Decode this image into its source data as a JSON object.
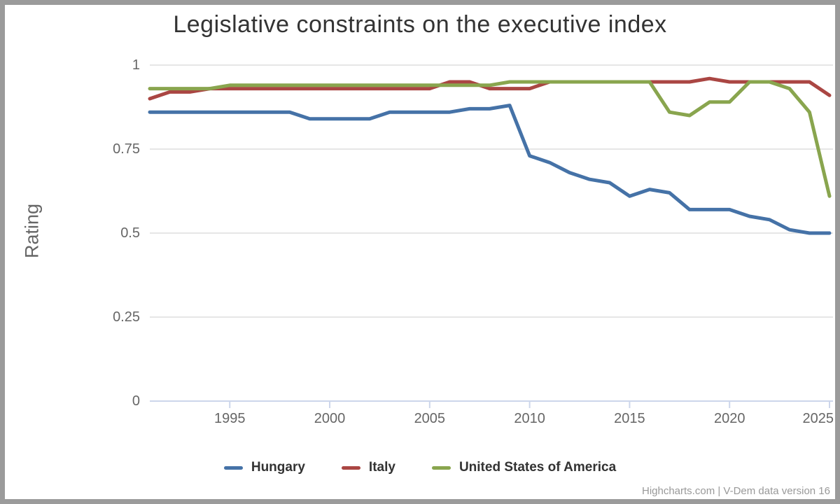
{
  "title": "Legislative constraints on the executive index",
  "y_axis": {
    "title": "Rating",
    "ticks": [
      0,
      0.25,
      0.5,
      0.75,
      1
    ]
  },
  "x_axis": {
    "ticks": [
      1995,
      2000,
      2005,
      2010,
      2015,
      2020,
      2025
    ]
  },
  "credits": "Highcharts.com | V-Dem data version 16",
  "colors": {
    "grid": "#e6e6e6",
    "axis_line": "#ccd6eb",
    "text": "#666666",
    "title_text": "#333333"
  },
  "chart_data": {
    "type": "line",
    "title": "Legislative constraints on the executive index",
    "xlabel": "",
    "ylabel": "Rating",
    "xlim": [
      1991,
      2025
    ],
    "ylim": [
      0,
      1
    ],
    "grid": true,
    "legend_position": "bottom",
    "x": [
      1991,
      1992,
      1993,
      1994,
      1995,
      1996,
      1997,
      1998,
      1999,
      2000,
      2001,
      2002,
      2003,
      2004,
      2005,
      2006,
      2007,
      2008,
      2009,
      2010,
      2011,
      2012,
      2013,
      2014,
      2015,
      2016,
      2017,
      2018,
      2019,
      2020,
      2021,
      2022,
      2023,
      2024,
      2025
    ],
    "series": [
      {
        "name": "Hungary",
        "color": "#4572A7",
        "values": [
          0.86,
          0.86,
          0.86,
          0.86,
          0.86,
          0.86,
          0.86,
          0.86,
          0.84,
          0.84,
          0.84,
          0.84,
          0.86,
          0.86,
          0.86,
          0.86,
          0.87,
          0.87,
          0.88,
          0.73,
          0.71,
          0.68,
          0.66,
          0.65,
          0.61,
          0.63,
          0.62,
          0.57,
          0.57,
          0.57,
          0.55,
          0.54,
          0.51,
          0.5,
          0.5
        ]
      },
      {
        "name": "Italy",
        "color": "#AA4643",
        "values": [
          0.9,
          0.92,
          0.92,
          0.93,
          0.93,
          0.93,
          0.93,
          0.93,
          0.93,
          0.93,
          0.93,
          0.93,
          0.93,
          0.93,
          0.93,
          0.95,
          0.95,
          0.93,
          0.93,
          0.93,
          0.95,
          0.95,
          0.95,
          0.95,
          0.95,
          0.95,
          0.95,
          0.95,
          0.96,
          0.95,
          0.95,
          0.95,
          0.95,
          0.95,
          0.91
        ]
      },
      {
        "name": "United States of America",
        "color": "#89A54E",
        "values": [
          0.93,
          0.93,
          0.93,
          0.93,
          0.94,
          0.94,
          0.94,
          0.94,
          0.94,
          0.94,
          0.94,
          0.94,
          0.94,
          0.94,
          0.94,
          0.94,
          0.94,
          0.94,
          0.95,
          0.95,
          0.95,
          0.95,
          0.95,
          0.95,
          0.95,
          0.95,
          0.86,
          0.85,
          0.89,
          0.89,
          0.95,
          0.95,
          0.93,
          0.86,
          0.61
        ]
      }
    ]
  }
}
